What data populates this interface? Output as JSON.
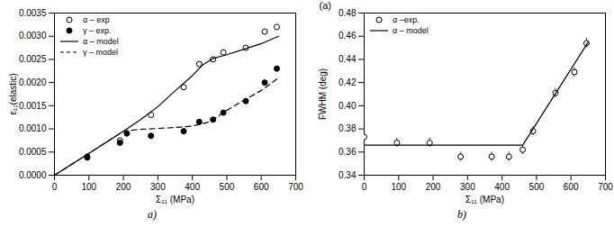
{
  "chart_data": [
    {
      "type": "line",
      "caption": "a)",
      "x_label": "Σ₁₁ (MPa)",
      "y_label": "ε₁₁(elastic)",
      "xlim": [
        0,
        700
      ],
      "xticks": [
        0,
        100,
        200,
        300,
        400,
        500,
        600,
        700
      ],
      "ylim": [
        0,
        0.0035
      ],
      "yticks": [
        {
          "value": 0,
          "label": "0.0000"
        },
        {
          "value": 0.0005,
          "label": "0.0005"
        },
        {
          "value": 0.001,
          "label": "0.0010"
        },
        {
          "value": 0.0015,
          "label": "0.0015"
        },
        {
          "value": 0.002,
          "label": "0.0020"
        },
        {
          "value": 0.0025,
          "label": "0.0025"
        },
        {
          "value": 0.003,
          "label": "0.0030"
        },
        {
          "value": 0.0035,
          "label": "0.0035"
        }
      ],
      "legend": "upper left",
      "series": [
        {
          "name": "α – exp",
          "type": "scatter",
          "marker": "open circle",
          "color": "#000000",
          "x": [
            95,
            190,
            280,
            375,
            420,
            460,
            490,
            555,
            610,
            645
          ],
          "values": [
            0.0004,
            0.00075,
            0.0013,
            0.0019,
            0.0024,
            0.0025,
            0.00265,
            0.00275,
            0.0031,
            0.0032
          ],
          "errors": [
            5e-05,
            5e-05,
            5e-05,
            5e-05,
            5e-05,
            5e-05,
            5e-05,
            5e-05,
            5e-05,
            5e-05
          ]
        },
        {
          "name": "γ – exp.",
          "type": "scatter",
          "marker": "filled circle",
          "color": "#000000",
          "x": [
            95,
            190,
            210,
            280,
            375,
            420,
            460,
            490,
            555,
            610,
            645
          ],
          "values": [
            0.00038,
            0.0007,
            0.0009,
            0.00085,
            0.00095,
            0.00115,
            0.0012,
            0.00135,
            0.0016,
            0.002,
            0.0023
          ],
          "errors": [
            5e-05,
            5e-05,
            5e-05,
            5e-05,
            5e-05,
            5e-05,
            5e-05,
            5e-05,
            5e-05,
            5e-05,
            5e-05
          ]
        },
        {
          "name": "α – model",
          "type": "line",
          "line_style": "solid",
          "color": "#000000",
          "x": [
            0,
            100,
            200,
            250,
            300,
            350,
            400,
            430,
            460,
            500,
            550,
            600,
            650
          ],
          "values": [
            0,
            0.00047,
            0.00095,
            0.0012,
            0.00148,
            0.00182,
            0.00215,
            0.00238,
            0.00252,
            0.0026,
            0.00272,
            0.00284,
            0.003
          ]
        },
        {
          "name": "γ – model",
          "type": "line",
          "line_style": "dashed",
          "color": "#000000",
          "x": [
            0,
            100,
            200,
            250,
            300,
            350,
            400,
            450,
            500,
            550,
            600,
            650
          ],
          "values": [
            0,
            0.00047,
            0.00095,
            0.00099,
            0.00101,
            0.00103,
            0.00106,
            0.00115,
            0.0014,
            0.00162,
            0.00183,
            0.0021
          ]
        }
      ]
    },
    {
      "type": "line",
      "caption": "b)",
      "title": "(a)",
      "x_label": "Σ₁₁ (MPa)",
      "y_label": "FWHM (deg)",
      "xlim": [
        0,
        700
      ],
      "xticks": [
        0,
        100,
        200,
        300,
        400,
        500,
        600,
        700
      ],
      "ylim": [
        0.34,
        0.48
      ],
      "yticks": [
        0.34,
        0.36,
        0.38,
        {
          "value": 0.4,
          "label": "0.40"
        },
        0.42,
        0.44,
        0.46,
        0.48
      ],
      "legend": "upper left",
      "series": [
        {
          "name": "α –exp.",
          "type": "scatter",
          "marker": "open circle",
          "color": "#000000",
          "x": [
            0,
            95,
            190,
            280,
            370,
            420,
            460,
            490,
            555,
            610,
            645
          ],
          "values": [
            0.373,
            0.368,
            0.368,
            0.356,
            0.356,
            0.356,
            0.362,
            0.378,
            0.411,
            0.429,
            0.454
          ],
          "errors": [
            0.004,
            0.004,
            0.004,
            0.004,
            0.004,
            0.004,
            0.004,
            0.004,
            0.004,
            0.004,
            0.004
          ]
        },
        {
          "name": "α – model",
          "type": "line",
          "line_style": "solid",
          "color": "#000000",
          "x": [
            0,
            460,
            650
          ],
          "values": [
            0.366,
            0.366,
            0.455
          ]
        }
      ]
    }
  ]
}
